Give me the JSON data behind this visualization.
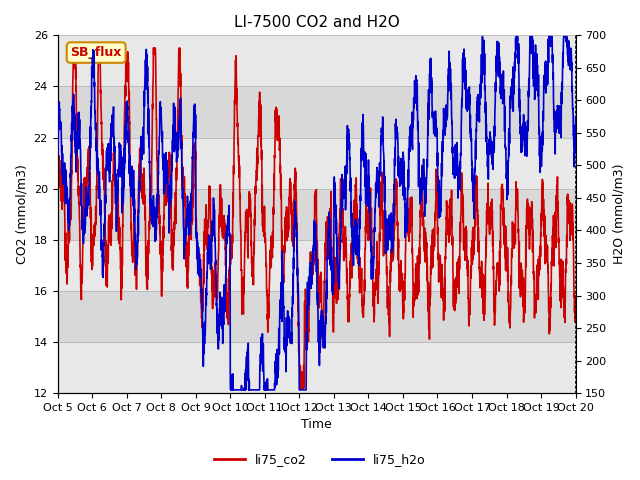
{
  "title": "LI-7500 CO2 and H2O",
  "xlabel": "Time",
  "ylabel_left": "CO2 (mmol/m3)",
  "ylabel_right": "H2O (mmol/m3)",
  "ylim_left": [
    12,
    26
  ],
  "ylim_right": [
    150,
    700
  ],
  "yticks_left": [
    12,
    14,
    16,
    18,
    20,
    22,
    24,
    26
  ],
  "yticks_right": [
    150,
    200,
    250,
    300,
    350,
    400,
    450,
    500,
    550,
    600,
    650,
    700
  ],
  "xtick_labels": [
    "Oct 5",
    "Oct 6",
    "Oct 7",
    "Oct 8",
    "Oct 9",
    "Oct 10",
    "Oct 11",
    "Oct 12",
    "Oct 13",
    "Oct 14",
    "Oct 15",
    "Oct 16",
    "Oct 17",
    "Oct 18",
    "Oct 19",
    "Oct 20"
  ],
  "color_co2": "#cc0000",
  "color_h2o": "#0000cc",
  "legend_label_co2": "li75_co2",
  "legend_label_h2o": "li75_h2o",
  "text_box_label": "SB_flux",
  "text_box_facecolor": "#ffffcc",
  "text_box_edgecolor": "#cc8800",
  "text_box_textcolor": "#cc0000",
  "grid_color": "#bbbbbb",
  "band_colors": [
    "#e8e8e8",
    "#d8d8d8"
  ],
  "title_fontsize": 11,
  "axis_fontsize": 9,
  "tick_fontsize": 8,
  "legend_fontsize": 9,
  "linewidth": 1.2
}
